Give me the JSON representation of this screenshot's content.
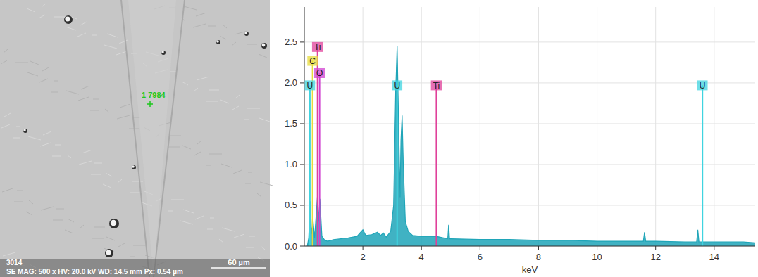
{
  "chart_data": {
    "type": "line",
    "x_label": "keV",
    "xlim": [
      0,
      15.4
    ],
    "ylim": [
      0,
      2.93
    ],
    "xticks": [
      2,
      4,
      6,
      8,
      10,
      12,
      14
    ],
    "yticks": [
      {
        "value": 0,
        "label": "0.0"
      },
      0.5,
      {
        "value": 1,
        "label": "1.0"
      },
      1.5,
      {
        "value": 2,
        "label": "2.0"
      },
      2.5
    ],
    "grid": true,
    "color": "#1fa5b8",
    "x": [
      0.1,
      0.15,
      0.2,
      0.25,
      0.3,
      0.35,
      0.45,
      0.5,
      0.53,
      0.6,
      0.7,
      0.8,
      1.0,
      1.5,
      1.8,
      2.0,
      2.1,
      2.3,
      2.5,
      2.6,
      2.7,
      2.8,
      2.95,
      3.05,
      3.12,
      3.17,
      3.22,
      3.27,
      3.3,
      3.34,
      3.38,
      3.45,
      3.55,
      3.7,
      4.0,
      4.5,
      4.9,
      4.93,
      4.96,
      5.0,
      6.0,
      7.0,
      8.0,
      9.0,
      10.0,
      11.0,
      11.58,
      11.62,
      11.66,
      12.0,
      13.0,
      13.4,
      13.44,
      13.48,
      14.0,
      15.0,
      15.4
    ],
    "values": [
      0.0,
      0.1,
      0.55,
      0.15,
      0.3,
      0.1,
      0.62,
      0.3,
      0.58,
      0.12,
      0.07,
      0.06,
      0.08,
      0.1,
      0.12,
      0.2,
      0.13,
      0.14,
      0.17,
      0.13,
      0.16,
      0.11,
      0.18,
      0.5,
      1.9,
      2.45,
      1.5,
      0.6,
      1.3,
      1.6,
      1.0,
      0.3,
      0.18,
      0.13,
      0.12,
      0.12,
      0.09,
      0.26,
      0.09,
      0.09,
      0.08,
      0.08,
      0.07,
      0.07,
      0.06,
      0.06,
      0.06,
      0.17,
      0.06,
      0.06,
      0.05,
      0.05,
      0.2,
      0.05,
      0.05,
      0.05,
      0.04
    ],
    "markers": [
      {
        "label": "Ti",
        "energy": 0.45,
        "height": 2.44,
        "color": "#e0409a"
      },
      {
        "label": "C",
        "energy": 0.28,
        "height": 2.27,
        "color": "#e6dc3a"
      },
      {
        "label": "O",
        "energy": 0.52,
        "height": 2.12,
        "color": "#d040d0"
      },
      {
        "label": "U",
        "energy": 0.19,
        "height": 1.97,
        "color": "#3fd4e0"
      },
      {
        "label": "U",
        "energy": 3.17,
        "height": 1.97,
        "color": "#3fd4e0"
      },
      {
        "label": "Ti",
        "energy": 4.51,
        "height": 1.97,
        "color": "#e0409a"
      },
      {
        "label": "U",
        "energy": 13.6,
        "height": 1.97,
        "color": "#3fd4e0"
      }
    ]
  },
  "sem_image": {
    "annotation": "1 7984",
    "detector_id": "3014",
    "info": "SE  MAG: 500 x HV: 20.0 kV WD: 14.5 mm Px: 0.54 µm",
    "scale_bar": "60 µm"
  }
}
